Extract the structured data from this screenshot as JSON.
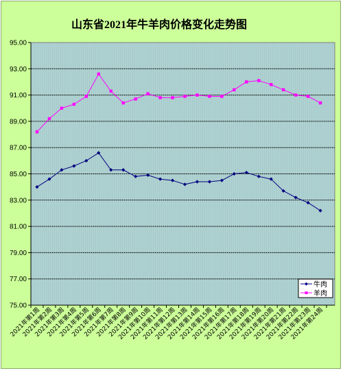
{
  "chart_data": {
    "type": "line",
    "title": "山东省2021年牛羊肉价格变化走势图",
    "xlabel": "",
    "ylabel": "",
    "ylim": [
      75,
      95
    ],
    "yticks": [
      "95.00",
      "93.00",
      "91.00",
      "89.00",
      "87.00",
      "85.00",
      "83.00",
      "81.00",
      "79.00",
      "77.00",
      "75.00"
    ],
    "grid": true,
    "legend_position": "bottom-right",
    "categories": [
      "2021年第1周",
      "2021年第2周",
      "2021年第3周",
      "2021年第4周",
      "2021年第5周",
      "2021年第6周",
      "2021年第7周",
      "2021年第8周",
      "2021年第9周",
      "2021年第10周",
      "2021年第11周",
      "2021年第12周",
      "2021年第13周",
      "2021年第14周",
      "2021年第15周",
      "2021年第16周",
      "2021年第17周",
      "2021年第18周",
      "2021年第19周",
      "2021年第20周",
      "2021年第21周",
      "2021年第22周",
      "2021年第23周",
      "2021年第24周"
    ],
    "series": [
      {
        "name": "牛肉",
        "color": "#000080",
        "marker": "diamond",
        "values": [
          84.0,
          84.6,
          85.3,
          85.6,
          86.0,
          86.6,
          85.3,
          85.3,
          84.8,
          84.9,
          84.6,
          84.5,
          84.2,
          84.4,
          84.4,
          84.5,
          85.0,
          85.1,
          84.8,
          84.6,
          83.7,
          83.2,
          82.8,
          82.2
        ]
      },
      {
        "name": "羊肉",
        "color": "#ff00ff",
        "marker": "square",
        "values": [
          88.2,
          89.2,
          90.0,
          90.3,
          90.9,
          92.6,
          91.3,
          90.4,
          90.7,
          91.1,
          90.8,
          90.8,
          90.9,
          91.0,
          90.9,
          90.9,
          91.4,
          92.0,
          92.1,
          91.8,
          91.4,
          91.0,
          90.9,
          90.4
        ]
      }
    ]
  }
}
